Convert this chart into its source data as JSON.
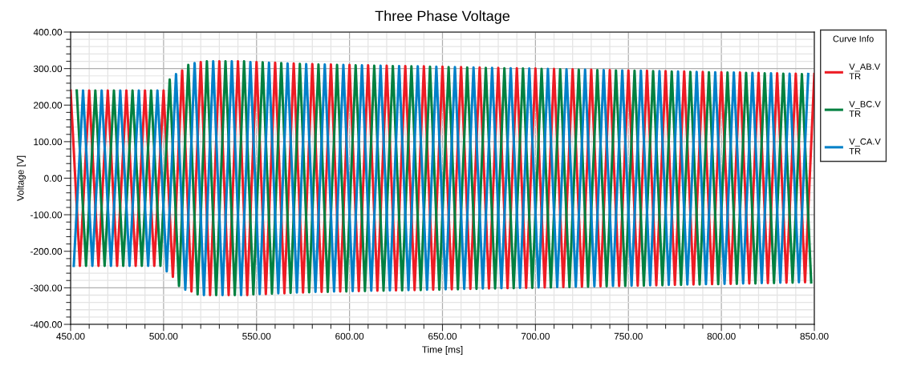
{
  "chart_data": {
    "type": "line",
    "title": "Three Phase Voltage",
    "xlabel": "Time [ms]",
    "ylabel": "Voltage [V]",
    "legend_title": "Curve Info",
    "legend": "top right",
    "grid": true,
    "marker": "none",
    "line_style": "solid",
    "xlim": [
      450,
      850
    ],
    "ylim": [
      -400,
      400
    ],
    "xticks": [
      {
        "value": 450,
        "label": "450.00"
      },
      {
        "value": 460,
        "label": null
      },
      {
        "value": 470,
        "label": null
      },
      {
        "value": 480,
        "label": null
      },
      {
        "value": 490,
        "label": null
      },
      {
        "value": 500,
        "label": "500.00"
      },
      {
        "value": 510,
        "label": null
      },
      {
        "value": 520,
        "label": null
      },
      {
        "value": 530,
        "label": null
      },
      {
        "value": 540,
        "label": null
      },
      {
        "value": 550,
        "label": "550.00"
      },
      {
        "value": 560,
        "label": null
      },
      {
        "value": 570,
        "label": null
      },
      {
        "value": 580,
        "label": null
      },
      {
        "value": 590,
        "label": null
      },
      {
        "value": 600,
        "label": "600.00"
      },
      {
        "value": 610,
        "label": null
      },
      {
        "value": 620,
        "label": null
      },
      {
        "value": 630,
        "label": null
      },
      {
        "value": 640,
        "label": null
      },
      {
        "value": 650,
        "label": "650.00"
      },
      {
        "value": 660,
        "label": null
      },
      {
        "value": 670,
        "label": null
      },
      {
        "value": 680,
        "label": null
      },
      {
        "value": 690,
        "label": null
      },
      {
        "value": 700,
        "label": "700.00"
      },
      {
        "value": 710,
        "label": null
      },
      {
        "value": 720,
        "label": null
      },
      {
        "value": 730,
        "label": null
      },
      {
        "value": 740,
        "label": null
      },
      {
        "value": 750,
        "label": "750.00"
      },
      {
        "value": 760,
        "label": null
      },
      {
        "value": 770,
        "label": null
      },
      {
        "value": 780,
        "label": null
      },
      {
        "value": 790,
        "label": null
      },
      {
        "value": 800,
        "label": "800.00"
      },
      {
        "value": 810,
        "label": null
      },
      {
        "value": 820,
        "label": null
      },
      {
        "value": 830,
        "label": null
      },
      {
        "value": 840,
        "label": null
      },
      {
        "value": 850,
        "label": "850.00"
      }
    ],
    "yticks": [
      {
        "value": -400,
        "label": "-400.00"
      },
      {
        "value": -380,
        "label": null
      },
      {
        "value": -360,
        "label": null
      },
      {
        "value": -340,
        "label": null
      },
      {
        "value": -320,
        "label": null
      },
      {
        "value": -300,
        "label": "-300.00"
      },
      {
        "value": -280,
        "label": null
      },
      {
        "value": -260,
        "label": null
      },
      {
        "value": -240,
        "label": null
      },
      {
        "value": -220,
        "label": null
      },
      {
        "value": -200,
        "label": "-200.00"
      },
      {
        "value": -180,
        "label": null
      },
      {
        "value": -160,
        "label": null
      },
      {
        "value": -140,
        "label": null
      },
      {
        "value": -120,
        "label": null
      },
      {
        "value": -100,
        "label": "-100.00"
      },
      {
        "value": -80,
        "label": null
      },
      {
        "value": -60,
        "label": null
      },
      {
        "value": -40,
        "label": null
      },
      {
        "value": -20,
        "label": null
      },
      {
        "value": 0,
        "label": "0.00"
      },
      {
        "value": 20,
        "label": null
      },
      {
        "value": 40,
        "label": null
      },
      {
        "value": 60,
        "label": null
      },
      {
        "value": 80,
        "label": null
      },
      {
        "value": 100,
        "label": "100.00"
      },
      {
        "value": 120,
        "label": null
      },
      {
        "value": 140,
        "label": null
      },
      {
        "value": 160,
        "label": null
      },
      {
        "value": 180,
        "label": null
      },
      {
        "value": 200,
        "label": "200.00"
      },
      {
        "value": 220,
        "label": null
      },
      {
        "value": 240,
        "label": null
      },
      {
        "value": 260,
        "label": null
      },
      {
        "value": 280,
        "label": null
      },
      {
        "value": 300,
        "label": "300.00"
      },
      {
        "value": 320,
        "label": null
      },
      {
        "value": 340,
        "label": null
      },
      {
        "value": 360,
        "label": null
      },
      {
        "value": 380,
        "label": null
      },
      {
        "value": 400,
        "label": "400.00"
      }
    ],
    "series": [
      {
        "name": "V_AB.V\nTR",
        "color": "#ed1c24",
        "x": [
          450,
          455,
          460,
          465,
          470,
          475,
          480,
          485,
          490,
          495,
          500,
          505,
          510,
          515,
          520,
          525,
          530,
          535,
          540,
          545,
          550,
          555,
          560,
          565,
          570,
          575,
          580,
          585,
          590,
          595,
          600,
          605,
          610,
          615,
          620,
          625,
          630,
          635,
          640,
          645,
          650,
          655,
          660,
          665,
          670,
          675,
          680,
          685,
          690,
          695,
          700,
          705,
          710,
          715,
          720,
          725,
          730,
          735,
          740,
          745,
          750,
          755,
          760,
          765,
          770,
          775,
          780,
          785,
          790,
          795,
          800,
          805,
          810,
          815,
          820,
          825,
          830,
          835,
          840,
          845,
          850
        ],
        "values": [
          240,
          -240,
          240,
          -240,
          240,
          -240,
          240,
          -240,
          240,
          -240,
          240,
          -270,
          295,
          -310,
          318,
          -320,
          320,
          -320,
          320,
          -320,
          318,
          -317,
          316,
          -315,
          314,
          -313,
          312,
          -311,
          311,
          -310,
          310,
          -309,
          309,
          -308,
          308,
          -307,
          307,
          -306,
          306,
          -305,
          305,
          -304,
          304,
          -303,
          303,
          -302,
          302,
          -301,
          301,
          -300,
          300,
          -299,
          299,
          -298,
          298,
          -297,
          297,
          -296,
          296,
          -295,
          295,
          -294,
          294,
          -293,
          293,
          -292,
          292,
          -291,
          291,
          -290,
          290,
          -289,
          289,
          -288,
          288,
          -287,
          287,
          -286,
          286,
          -285,
          285
        ]
      },
      {
        "name": "V_BC.V\nTR",
        "color": "#008040",
        "x": [
          453.3,
          458.3,
          463.3,
          468.3,
          473.3,
          478.3,
          483.3,
          488.3,
          493.3,
          498.3,
          503.3,
          508.3,
          513.3,
          518.3,
          523.3,
          528.3,
          533.3,
          538.3,
          543.3,
          548.3,
          553.3,
          558.3,
          563.3,
          568.3,
          573.3,
          578.3,
          583.3,
          588.3,
          593.3,
          598.3,
          603.3,
          608.3,
          613.3,
          618.3,
          623.3,
          628.3,
          633.3,
          638.3,
          643.3,
          648.3,
          653.3,
          658.3,
          663.3,
          668.3,
          673.3,
          678.3,
          683.3,
          688.3,
          693.3,
          698.3,
          703.3,
          708.3,
          713.3,
          718.3,
          723.3,
          728.3,
          733.3,
          738.3,
          743.3,
          748.3,
          753.3,
          758.3,
          763.3,
          768.3,
          773.3,
          778.3,
          783.3,
          788.3,
          793.3,
          798.3,
          803.3,
          808.3,
          813.3,
          818.3,
          823.3,
          828.3,
          833.3,
          838.3,
          843.3,
          848.3
        ],
        "values": [
          240,
          -240,
          240,
          -240,
          240,
          -240,
          240,
          -240,
          240,
          -240,
          270,
          -295,
          310,
          -318,
          320,
          -320,
          320,
          -320,
          320,
          -318,
          317,
          -316,
          315,
          -314,
          313,
          -312,
          311,
          -311,
          310,
          -310,
          309,
          -309,
          308,
          -308,
          307,
          -307,
          306,
          -306,
          305,
          -305,
          304,
          -304,
          303,
          -303,
          302,
          -302,
          301,
          -301,
          300,
          -300,
          299,
          -299,
          298,
          -298,
          297,
          -297,
          296,
          -296,
          295,
          -295,
          294,
          -294,
          293,
          -293,
          292,
          -292,
          291,
          -291,
          290,
          -290,
          289,
          -289,
          288,
          -288,
          287,
          -287,
          286,
          -286,
          285,
          -285
        ]
      },
      {
        "name": "V_CA.V\nTR",
        "color": "#0080c8",
        "x": [
          451.7,
          456.7,
          461.7,
          466.7,
          471.7,
          476.7,
          481.7,
          486.7,
          491.7,
          496.7,
          501.7,
          506.7,
          511.7,
          516.7,
          521.7,
          526.7,
          531.7,
          536.7,
          541.7,
          546.7,
          551.7,
          556.7,
          561.7,
          566.7,
          571.7,
          576.7,
          581.7,
          586.7,
          591.7,
          596.7,
          601.7,
          606.7,
          611.7,
          616.7,
          621.7,
          626.7,
          631.7,
          636.7,
          641.7,
          646.7,
          651.7,
          656.7,
          661.7,
          666.7,
          671.7,
          676.7,
          681.7,
          686.7,
          691.7,
          696.7,
          701.7,
          706.7,
          711.7,
          716.7,
          721.7,
          726.7,
          731.7,
          736.7,
          741.7,
          746.7,
          751.7,
          756.7,
          761.7,
          766.7,
          771.7,
          776.7,
          781.7,
          786.7,
          791.7,
          796.7,
          801.7,
          806.7,
          811.7,
          816.7,
          821.7,
          826.7,
          831.7,
          836.7,
          841.7,
          846.7
        ],
        "values": [
          -240,
          240,
          -240,
          240,
          -240,
          240,
          -240,
          240,
          -240,
          240,
          -255,
          285,
          -305,
          315,
          -320,
          320,
          -320,
          320,
          -320,
          318,
          -317,
          316,
          -315,
          314,
          -313,
          312,
          -311,
          311,
          -310,
          310,
          -309,
          309,
          -308,
          308,
          -307,
          307,
          -306,
          306,
          -305,
          305,
          -304,
          304,
          -303,
          303,
          -302,
          302,
          -301,
          301,
          -300,
          300,
          -299,
          299,
          -298,
          298,
          -297,
          297,
          -296,
          296,
          -295,
          295,
          -294,
          294,
          -293,
          293,
          -292,
          292,
          -291,
          291,
          -290,
          290,
          -289,
          289,
          -288,
          288,
          -287,
          287,
          -286,
          286,
          -285,
          285
        ]
      }
    ]
  }
}
